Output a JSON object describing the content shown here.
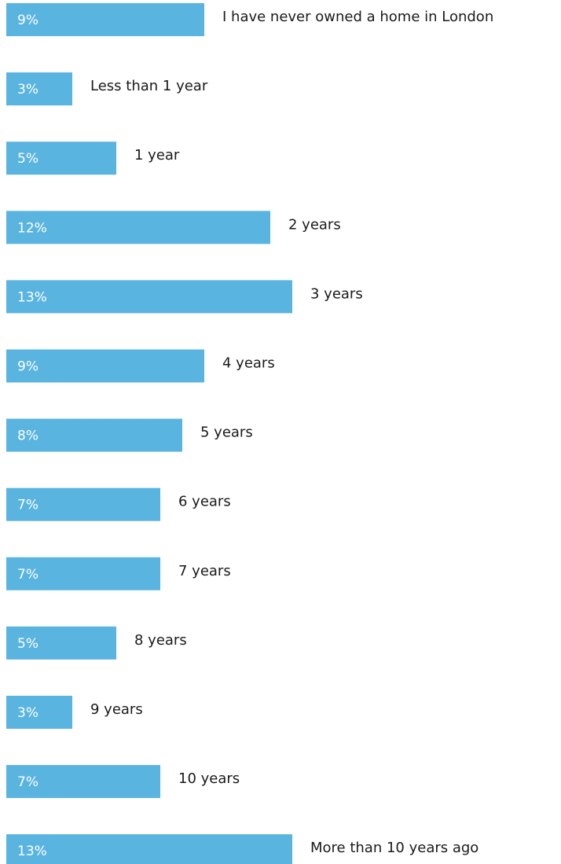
{
  "chart_data": {
    "type": "bar",
    "orientation": "horizontal",
    "categories": [
      "I have never owned a home in London",
      "Less than 1 year",
      "1 year",
      "2 years",
      "3 years",
      "4 years",
      "5 years",
      "6 years",
      "7 years",
      "8 years",
      "9 years",
      "10 years",
      "More than 10 years ago"
    ],
    "values": [
      9,
      3,
      5,
      12,
      13,
      9,
      8,
      7,
      7,
      5,
      3,
      7,
      13
    ],
    "value_labels": [
      "9%",
      "3%",
      "5%",
      "12%",
      "13%",
      "9%",
      "8%",
      "7%",
      "7%",
      "5%",
      "3%",
      "7%",
      "13%"
    ],
    "unit": "%",
    "bar_color": "#5ab4e0",
    "title": "",
    "xlabel": "",
    "ylabel": ""
  }
}
